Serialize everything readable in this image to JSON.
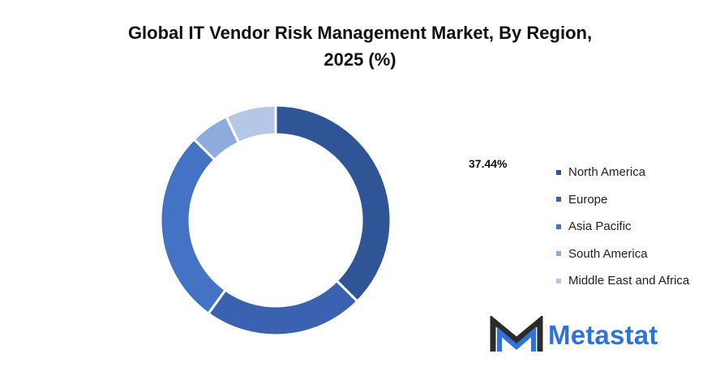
{
  "chart_data": {
    "type": "donut",
    "title_line1": "Global IT Vendor Risk Management Market, By Region,",
    "title_line2": "2025 (%)",
    "categories": [
      "North America",
      "Europe",
      "Asia Pacific",
      "South America",
      "Middle East and Africa"
    ],
    "values": [
      37.44,
      22.5,
      27.5,
      5.5,
      7.06
    ],
    "colors": [
      "#2f5597",
      "#3a62b0",
      "#4472c4",
      "#8faadc",
      "#b4c7e7"
    ],
    "data_labels": [
      "37.44%"
    ],
    "legend_position": "right"
  },
  "brand": {
    "name": "Metastat",
    "icon": "metastat-m-logo-icon",
    "dark_color": "#2b2b2b",
    "accent_color": "#2e74d8"
  }
}
